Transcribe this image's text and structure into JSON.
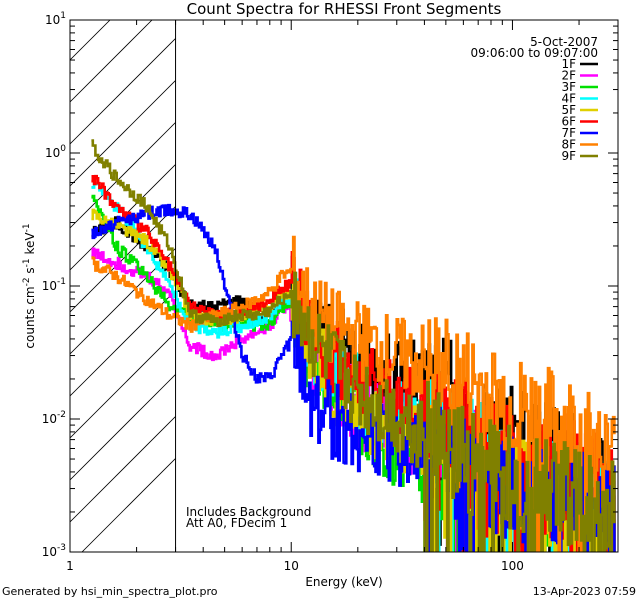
{
  "chart_data": {
    "type": "line",
    "title": "Count Spectra for RHESSI Front Segments",
    "xlabel": "Energy (keV)",
    "ylabel": "counts cm-2 s-1 keV-1",
    "ylabel_parts": {
      "base": "counts cm",
      "exp1": "-2",
      "mid": " s",
      "exp2": "-1",
      "tail": " keV",
      "exp3": "-1"
    },
    "xscale": "log",
    "yscale": "log",
    "xlim": [
      1,
      300
    ],
    "ylim": [
      0.001,
      10
    ],
    "x_ticks": [
      {
        "value": 1,
        "label": "1"
      },
      {
        "value": 10,
        "label": "10"
      },
      {
        "value": 100,
        "label": "100"
      }
    ],
    "y_ticks": [
      {
        "value": 0.001,
        "base": "10",
        "exp": "-3"
      },
      {
        "value": 0.01,
        "base": "10",
        "exp": "-2"
      },
      {
        "value": 0.1,
        "base": "10",
        "exp": "-1"
      },
      {
        "value": 1,
        "base": "10",
        "exp": "0"
      },
      {
        "value": 10,
        "base": "10",
        "exp": "1"
      }
    ],
    "hatched_region": {
      "x_start": 1,
      "x_end": 3
    },
    "legend_date": "5-Oct-2007",
    "legend_time": "09:06:00 to 09:07:00",
    "legend_position": "top-right",
    "annotations": [
      "Includes Background",
      "Att A0, FDecim 1"
    ],
    "series": [
      {
        "name": "1F",
        "color": "#000000",
        "points": [
          [
            1.25,
            0.25
          ],
          [
            1.6,
            0.3
          ],
          [
            2.2,
            0.2
          ],
          [
            2.8,
            0.13
          ],
          [
            3.5,
            0.07
          ],
          [
            4.5,
            0.07
          ],
          [
            6,
            0.08
          ],
          [
            7,
            0.06
          ],
          [
            8,
            0.055
          ],
          [
            9,
            0.08
          ],
          [
            10,
            0.09
          ],
          [
            12,
            0.04
          ],
          [
            15,
            0.04
          ],
          [
            20,
            0.03
          ],
          [
            30,
            0.02
          ],
          [
            45,
            0.02
          ],
          [
            60,
            0.012
          ],
          [
            80,
            0.01
          ],
          [
            100,
            0.008
          ],
          [
            140,
            0.006
          ],
          [
            200,
            0.004
          ],
          [
            270,
            0.0035
          ]
        ]
      },
      {
        "name": "2F",
        "color": "#ff00ff",
        "points": [
          [
            1.25,
            0.18
          ],
          [
            1.6,
            0.15
          ],
          [
            2.2,
            0.12
          ],
          [
            2.8,
            0.09
          ],
          [
            3.5,
            0.035
          ],
          [
            4.5,
            0.03
          ],
          [
            6,
            0.04
          ],
          [
            7,
            0.045
          ],
          [
            8,
            0.05
          ],
          [
            9,
            0.07
          ],
          [
            10,
            0.06
          ],
          [
            12,
            0.03
          ],
          [
            15,
            0.02
          ],
          [
            20,
            0.012
          ],
          [
            30,
            0.008
          ],
          [
            45,
            0.006
          ],
          [
            60,
            0.005
          ],
          [
            80,
            0.004
          ],
          [
            100,
            0.004
          ],
          [
            140,
            0.003
          ],
          [
            200,
            0.0025
          ],
          [
            270,
            0.002
          ]
        ]
      },
      {
        "name": "3F",
        "color": "#00e000",
        "points": [
          [
            1.25,
            0.5
          ],
          [
            1.6,
            0.2
          ],
          [
            2.2,
            0.12
          ],
          [
            2.8,
            0.07
          ],
          [
            3.5,
            0.06
          ],
          [
            4.5,
            0.05
          ],
          [
            6,
            0.055
          ],
          [
            7,
            0.05
          ],
          [
            8,
            0.05
          ],
          [
            9,
            0.07
          ],
          [
            10,
            0.07
          ],
          [
            12,
            0.025
          ],
          [
            15,
            0.02
          ],
          [
            20,
            0.01
          ],
          [
            30,
            0.006
          ],
          [
            45,
            0.004
          ],
          [
            60,
            0.004
          ],
          [
            80,
            0.003
          ],
          [
            100,
            0.003
          ],
          [
            140,
            0.0025
          ],
          [
            200,
            0.002
          ],
          [
            270,
            0.0018
          ]
        ]
      },
      {
        "name": "4F",
        "color": "#00ffff",
        "points": [
          [
            1.25,
            0.6
          ],
          [
            1.6,
            0.4
          ],
          [
            2.2,
            0.2
          ],
          [
            2.8,
            0.1
          ],
          [
            3.5,
            0.05
          ],
          [
            4.5,
            0.045
          ],
          [
            6,
            0.05
          ],
          [
            7,
            0.055
          ],
          [
            8,
            0.06
          ],
          [
            9,
            0.08
          ],
          [
            10,
            0.08
          ],
          [
            12,
            0.035
          ],
          [
            15,
            0.025
          ],
          [
            20,
            0.015
          ],
          [
            30,
            0.01
          ],
          [
            45,
            0.008
          ],
          [
            60,
            0.006
          ],
          [
            80,
            0.005
          ],
          [
            100,
            0.004
          ],
          [
            140,
            0.0035
          ],
          [
            200,
            0.003
          ],
          [
            270,
            0.0025
          ]
        ]
      },
      {
        "name": "5F",
        "color": "#e0d000",
        "points": [
          [
            1.25,
            0.35
          ],
          [
            1.6,
            0.28
          ],
          [
            2.2,
            0.22
          ],
          [
            2.8,
            0.13
          ],
          [
            3.5,
            0.06
          ],
          [
            4.5,
            0.055
          ],
          [
            6,
            0.06
          ],
          [
            7,
            0.065
          ],
          [
            8,
            0.07
          ],
          [
            9,
            0.09
          ],
          [
            10,
            0.085
          ],
          [
            12,
            0.035
          ],
          [
            15,
            0.02
          ],
          [
            20,
            0.012
          ],
          [
            30,
            0.008
          ],
          [
            45,
            0.005
          ],
          [
            60,
            0.004
          ],
          [
            80,
            0.0035
          ],
          [
            100,
            0.003
          ],
          [
            140,
            0.0025
          ],
          [
            200,
            0.002
          ],
          [
            270,
            0.0018
          ]
        ]
      },
      {
        "name": "6F",
        "color": "#ff0000",
        "points": [
          [
            1.25,
            0.68
          ],
          [
            1.6,
            0.4
          ],
          [
            2.2,
            0.26
          ],
          [
            2.8,
            0.14
          ],
          [
            3.5,
            0.07
          ],
          [
            4.5,
            0.06
          ],
          [
            6,
            0.065
          ],
          [
            7,
            0.07
          ],
          [
            8,
            0.08
          ],
          [
            9,
            0.1
          ],
          [
            10,
            0.1
          ],
          [
            12,
            0.045
          ],
          [
            15,
            0.03
          ],
          [
            20,
            0.02
          ],
          [
            30,
            0.015
          ],
          [
            45,
            0.012
          ],
          [
            60,
            0.009
          ],
          [
            80,
            0.007
          ],
          [
            100,
            0.006
          ],
          [
            140,
            0.005
          ],
          [
            200,
            0.004
          ],
          [
            270,
            0.003
          ]
        ]
      },
      {
        "name": "7F",
        "color": "#0000ff",
        "points": [
          [
            1.25,
            0.24
          ],
          [
            1.6,
            0.3
          ],
          [
            2.2,
            0.35
          ],
          [
            2.8,
            0.38
          ],
          [
            3.5,
            0.34
          ],
          [
            4.5,
            0.2
          ],
          [
            6,
            0.03
          ],
          [
            7,
            0.02
          ],
          [
            8,
            0.02
          ],
          [
            9,
            0.03
          ],
          [
            10,
            0.04
          ],
          [
            12,
            0.015
          ],
          [
            15,
            0.01
          ],
          [
            20,
            0.008
          ],
          [
            30,
            0.006
          ],
          [
            45,
            0.005
          ],
          [
            60,
            0.004
          ],
          [
            80,
            0.0035
          ],
          [
            100,
            0.003
          ],
          [
            140,
            0.0028
          ],
          [
            200,
            0.0025
          ],
          [
            270,
            0.002
          ]
        ]
      },
      {
        "name": "8F",
        "color": "#ff8000",
        "points": [
          [
            1.25,
            0.15
          ],
          [
            1.6,
            0.12
          ],
          [
            2.2,
            0.08
          ],
          [
            2.8,
            0.06
          ],
          [
            3.5,
            0.05
          ],
          [
            4.5,
            0.06
          ],
          [
            6,
            0.07
          ],
          [
            7,
            0.08
          ],
          [
            8,
            0.09
          ],
          [
            9,
            0.12
          ],
          [
            10,
            0.13
          ],
          [
            12,
            0.07
          ],
          [
            15,
            0.05
          ],
          [
            20,
            0.04
          ],
          [
            30,
            0.03
          ],
          [
            45,
            0.025
          ],
          [
            60,
            0.02
          ],
          [
            80,
            0.015
          ],
          [
            100,
            0.012
          ],
          [
            140,
            0.01
          ],
          [
            200,
            0.008
          ],
          [
            270,
            0.005
          ]
        ]
      },
      {
        "name": "9F",
        "color": "#808000",
        "points": [
          [
            1.25,
            1.15
          ],
          [
            1.6,
            0.65
          ],
          [
            2.2,
            0.4
          ],
          [
            2.8,
            0.2
          ],
          [
            3.5,
            0.06
          ],
          [
            4.5,
            0.055
          ],
          [
            6,
            0.06
          ],
          [
            7,
            0.06
          ],
          [
            8,
            0.065
          ],
          [
            9,
            0.08
          ],
          [
            10,
            0.09
          ],
          [
            12,
            0.04
          ],
          [
            15,
            0.025
          ],
          [
            20,
            0.015
          ],
          [
            30,
            0.01
          ],
          [
            45,
            0.007
          ],
          [
            60,
            0.005
          ],
          [
            80,
            0.004
          ],
          [
            100,
            0.0035
          ],
          [
            140,
            0.003
          ],
          [
            200,
            0.0025
          ],
          [
            270,
            0.002
          ]
        ]
      }
    ]
  },
  "footer": {
    "left": "Generated by hsi_min_spectra_plot.pro",
    "right": "13-Apr-2023 07:59"
  }
}
